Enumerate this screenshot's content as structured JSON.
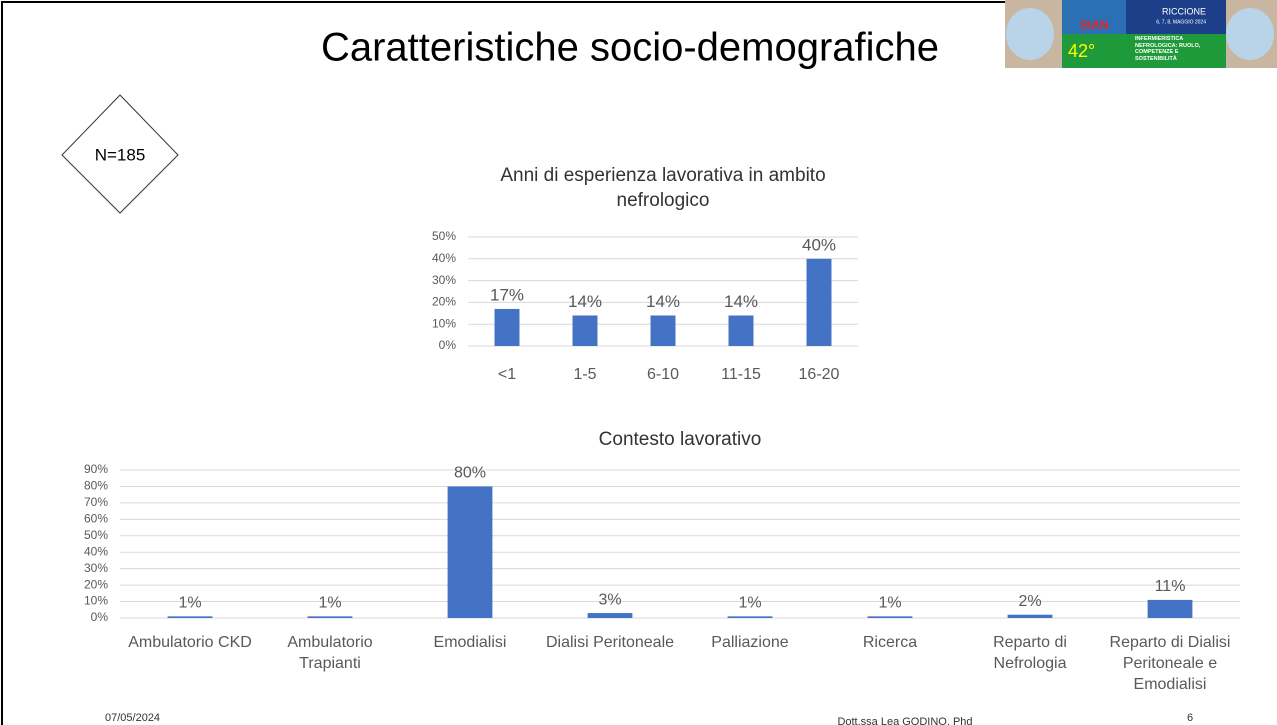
{
  "slide": {
    "title": "Caratteristiche socio-demografiche",
    "sample": "N=185",
    "date": "07/05/2024",
    "author": "Dott.ssa Lea GODINO, Phd",
    "page": "6",
    "logo": {
      "brand": "SIAN",
      "edition": "42°",
      "place": "RICCIONE",
      "dates": "6, 7, 8, MAGGIO 2024",
      "theme": "INFERMIERISTICA NEFROLOGICA: RUOLO, COMPETENZE E SOSTENIBILITÀ"
    }
  },
  "chart_data": [
    {
      "type": "bar",
      "title": "Anni di esperienza lavorativa in ambito nefrologico",
      "categories": [
        "<1",
        "1-5",
        "6-10",
        "11-15",
        "16-20"
      ],
      "values": [
        17,
        14,
        14,
        14,
        40
      ],
      "value_labels": [
        "17%",
        "14%",
        "14%",
        "14%",
        "40%"
      ],
      "color": "#4472c4",
      "ylim": [
        0,
        50
      ],
      "yticks": [
        {
          "value": 0,
          "label": "0%"
        },
        {
          "value": 10,
          "label": "10%"
        },
        {
          "value": 20,
          "label": "20%"
        },
        {
          "value": 30,
          "label": "30%"
        },
        {
          "value": 40,
          "label": "40%"
        },
        {
          "value": 50,
          "label": "50%"
        }
      ],
      "grid": true
    },
    {
      "type": "bar",
      "title": "Contesto lavorativo",
      "categories": [
        "Ambulatorio CKD",
        "Ambulatorio Trapianti",
        "Emodialisi",
        "Dialisi Peritoneale",
        "Palliazione",
        "Ricerca",
        "Reparto di Nefrologia",
        "Reparto di Dialisi Peritoneale e Emodialisi"
      ],
      "values": [
        1,
        1,
        80,
        3,
        1,
        1,
        2,
        11
      ],
      "value_labels": [
        "1%",
        "1%",
        "80%",
        "3%",
        "1%",
        "1%",
        "2%",
        "11%"
      ],
      "color": "#4472c4",
      "ylim": [
        0,
        90
      ],
      "yticks": [
        {
          "value": 0,
          "label": "0%"
        },
        {
          "value": 10,
          "label": "10%"
        },
        {
          "value": 20,
          "label": "20%"
        },
        {
          "value": 30,
          "label": "30%"
        },
        {
          "value": 40,
          "label": "40%"
        },
        {
          "value": 50,
          "label": "50%"
        },
        {
          "value": 60,
          "label": "60%"
        },
        {
          "value": 70,
          "label": "70%"
        },
        {
          "value": 80,
          "label": "80%"
        },
        {
          "value": 90,
          "label": "90%"
        }
      ],
      "grid": true
    }
  ]
}
